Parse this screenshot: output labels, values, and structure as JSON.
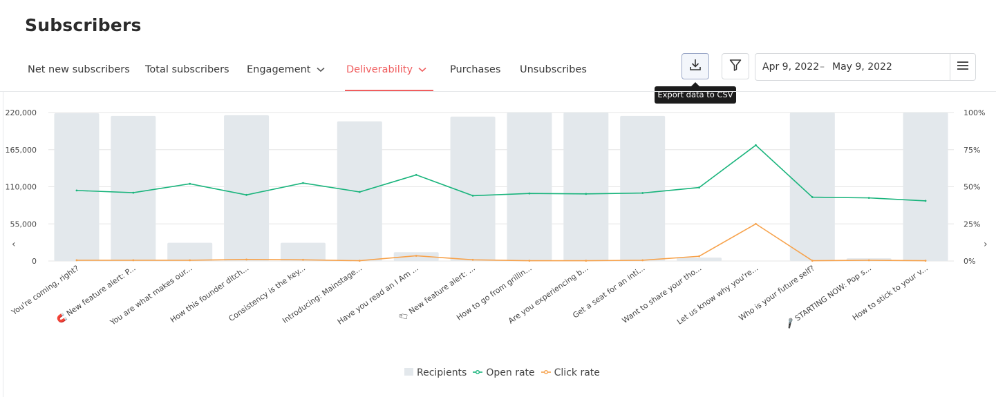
{
  "page_title": "Subscribers",
  "tabs": [
    {
      "label": "Net new subscribers",
      "has_dropdown": false,
      "active": false
    },
    {
      "label": "Total subscribers",
      "has_dropdown": false,
      "active": false
    },
    {
      "label": "Engagement",
      "has_dropdown": true,
      "active": false
    },
    {
      "label": "Deliverability",
      "has_dropdown": true,
      "active": true
    },
    {
      "label": "Purchases",
      "has_dropdown": false,
      "active": false
    },
    {
      "label": "Unsubscribes",
      "has_dropdown": false,
      "active": false
    }
  ],
  "toolbar": {
    "export_tooltip": "Export data to CSV",
    "date_start": "Apr 9, 2022",
    "date_separator": "–",
    "date_end": "May 9, 2022"
  },
  "icons": {
    "export": "download-icon",
    "filter": "filter-icon",
    "menu": "hamburger-menu-icon",
    "prev": "chevron-left-icon",
    "next": "chevron-right-icon",
    "tab_dropdown": "chevron-down-icon"
  },
  "colors": {
    "accent": "#f05d5e",
    "recipients": "#e3e8ec",
    "open_rate": "#19b47c",
    "click_rate": "#f7a24b",
    "grid": "#e5e5e5"
  },
  "nav": {
    "prev": "‹",
    "next": "›"
  },
  "chart_data": {
    "type": "bar",
    "categories": [
      "You're coming, right?",
      "🧲 New feature alert: P...",
      "You are what makes our...",
      "How this founder ditch...",
      "Consistency is the key...",
      "Introducing: Mainstage...",
      "Have you read an I Am ...",
      "🏷 New feature alert: ...",
      "How to go from grillin...",
      "Are you experiencing b...",
      "Get a seat for an inti...",
      "Want to share your tho...",
      "Let us know why you're...",
      "Who is your future self?",
      "🎤 STARTING NOW: Pop s...",
      "How to stick to your v..."
    ],
    "series": [
      {
        "name": "Recipients",
        "type": "bar",
        "axis": "left",
        "values": [
          219000,
          215000,
          27000,
          216000,
          27000,
          207000,
          13000,
          214000,
          220000,
          220000,
          215000,
          5000,
          0,
          220000,
          4000,
          220000
        ]
      },
      {
        "name": "Open rate",
        "type": "line",
        "axis": "right",
        "values": [
          47.5,
          46,
          52,
          44.5,
          52.5,
          46.5,
          58,
          44,
          45.5,
          45.2,
          45.8,
          49.5,
          78,
          43,
          42.5,
          40.5
        ]
      },
      {
        "name": "Click rate",
        "type": "line",
        "axis": "right",
        "values": [
          0.5,
          0.5,
          0.5,
          1,
          0.8,
          0.2,
          3.5,
          0.8,
          0.2,
          0.2,
          0.5,
          3.2,
          25,
          0.2,
          0.5,
          0.2
        ]
      }
    ],
    "y_left": {
      "min": 0,
      "max": 220000,
      "ticks": [
        "0",
        "55,000",
        "110,000",
        "165,000",
        "220,000"
      ],
      "tick_values": [
        0,
        55000,
        110000,
        165000,
        220000
      ]
    },
    "y_right": {
      "min": 0,
      "max": 100,
      "ticks": [
        "0%",
        "25%",
        "50%",
        "75%",
        "100%"
      ],
      "tick_values": [
        0,
        25,
        50,
        75,
        100
      ]
    },
    "grid": true,
    "legend_position": "bottom-center"
  }
}
